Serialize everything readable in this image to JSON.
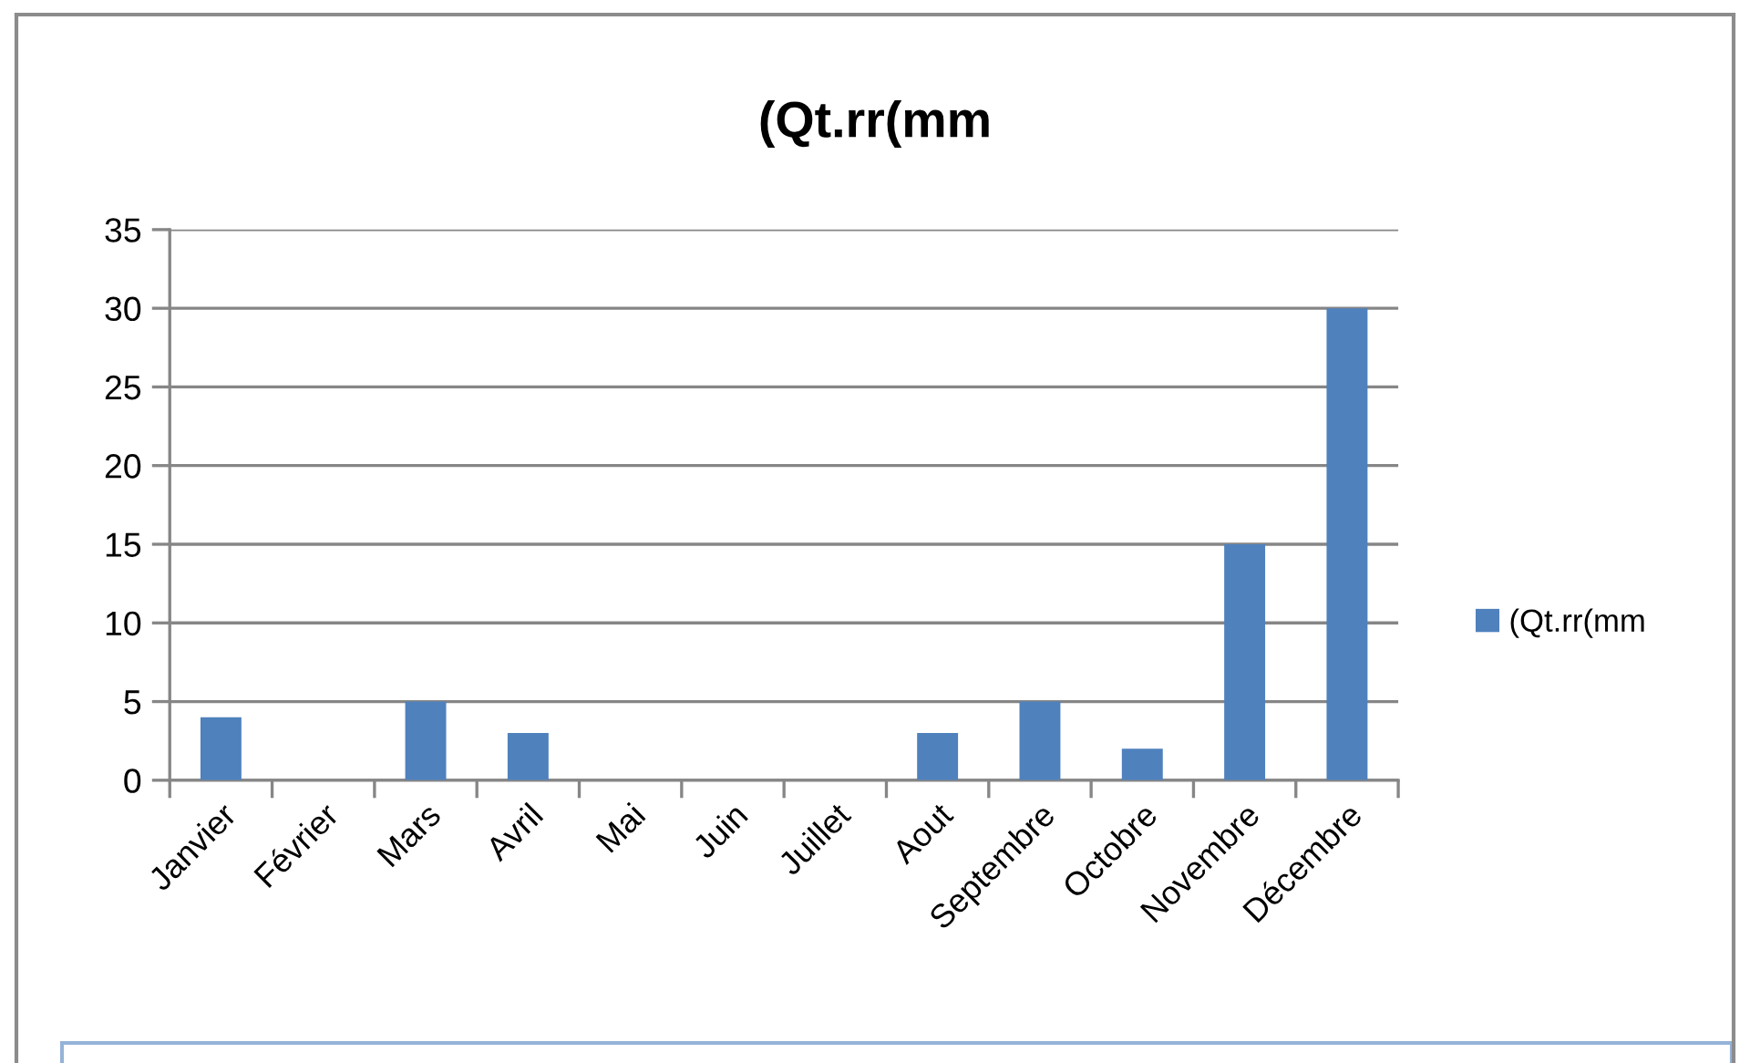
{
  "chart_data": {
    "type": "bar",
    "title": "(Qt.rr(mm",
    "categories": [
      "Janvier",
      "Février",
      "Mars",
      "Avril",
      "Mai",
      "Juin",
      "Juillet",
      "Aout",
      "Septembre",
      "Octobre",
      "Novembre",
      "Décembre"
    ],
    "series": [
      {
        "name": "(Qt.rr(mm",
        "color": "#4f81bd",
        "values": [
          4,
          0,
          5,
          3,
          0,
          0,
          0,
          3,
          5,
          2,
          15,
          30
        ]
      }
    ],
    "ylim": [
      0,
      35
    ],
    "yticks": [
      0,
      5,
      10,
      15,
      20,
      25,
      30,
      35
    ],
    "grid": "y",
    "legend": "right"
  }
}
